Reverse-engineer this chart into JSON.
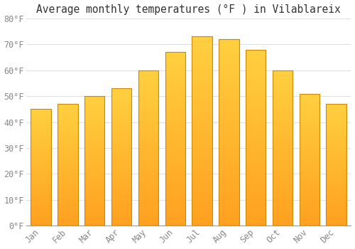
{
  "title": "Average monthly temperatures (°F ) in Vilablareix",
  "months": [
    "Jan",
    "Feb",
    "Mar",
    "Apr",
    "May",
    "Jun",
    "Jul",
    "Aug",
    "Sep",
    "Oct",
    "Nov",
    "Dec"
  ],
  "values": [
    45,
    47,
    50,
    53,
    60,
    67,
    73,
    72,
    68,
    60,
    51,
    47
  ],
  "bar_color_top": "#FFCC00",
  "bar_color_bottom": "#FFA020",
  "bar_edge_color": "#CC8800",
  "background_color": "#FFFFFF",
  "grid_color": "#E0E0E0",
  "tick_label_color": "#888888",
  "title_color": "#333333",
  "ylim": [
    0,
    80
  ],
  "yticks": [
    0,
    10,
    20,
    30,
    40,
    50,
    60,
    70,
    80
  ],
  "ytick_labels": [
    "0°F",
    "10°F",
    "20°F",
    "30°F",
    "40°F",
    "50°F",
    "60°F",
    "70°F",
    "80°F"
  ],
  "title_fontsize": 10.5,
  "tick_fontsize": 8.5,
  "bar_width": 0.75
}
